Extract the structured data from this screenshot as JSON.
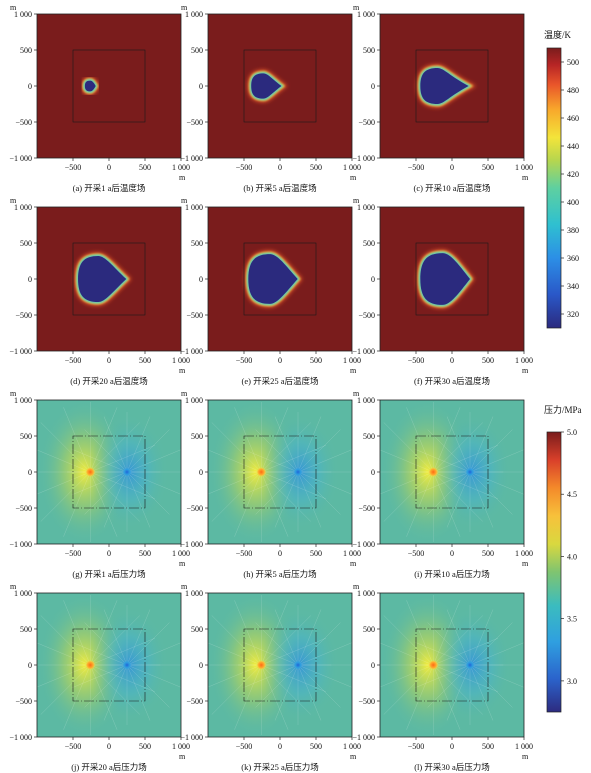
{
  "chart_data": {
    "type": "heatmap",
    "axis_unit_label": "m",
    "x_ticks": [
      -500,
      0,
      500,
      1000
    ],
    "y_ticks": [
      1000,
      500,
      0,
      -500,
      -1000
    ],
    "xlim": [
      -1000,
      1000
    ],
    "ylim": [
      -1000,
      1000
    ],
    "tick_text": {
      "x": [
        "−500",
        "0",
        "500",
        "1 000"
      ],
      "y": [
        "1 000",
        "500",
        "0",
        "−500",
        "−1 000"
      ]
    },
    "reservoir_box": {
      "x": [
        -500,
        500
      ],
      "y": [
        -500,
        500
      ]
    },
    "injection_well": {
      "x": -260,
      "y": 0
    },
    "production_well": {
      "x": 250,
      "y": 0
    },
    "temperature_colorbar": {
      "title": "温度/K",
      "range": [
        310,
        510
      ],
      "tick_labels": [
        "500",
        "480",
        "460",
        "440",
        "420",
        "400",
        "380",
        "360",
        "340",
        "320"
      ],
      "tick_values": [
        500,
        480,
        460,
        440,
        420,
        400,
        380,
        360,
        340,
        320
      ]
    },
    "pressure_colorbar": {
      "title": "压力/MPa",
      "range": [
        2.75,
        5.0
      ],
      "tick_labels": [
        "5.0",
        "4.5",
        "4.0",
        "3.5",
        "3.0"
      ],
      "tick_values": [
        5.0,
        4.5,
        4.0,
        3.5,
        3.0
      ]
    },
    "temperature_panels": [
      {
        "caption": "(a) 开采1 a后温度场",
        "cold_front": {
          "cx": -260,
          "cy": 0,
          "rx": 75,
          "ry": 75,
          "tip_x": -185
        }
      },
      {
        "caption": "(b) 开采5 a后温度场",
        "cold_front": {
          "cx": -230,
          "cy": 0,
          "rx": 170,
          "ry": 175,
          "tip_x": 20
        }
      },
      {
        "caption": "(c) 开采10 a后温度场",
        "cold_front": {
          "cx": -200,
          "cy": 0,
          "rx": 240,
          "ry": 250,
          "tip_x": 230
        }
      },
      {
        "caption": "(d) 开采20 a后温度场",
        "cold_front": {
          "cx": -150,
          "cy": 0,
          "rx": 280,
          "ry": 320,
          "tip_x": 240
        }
      },
      {
        "caption": "(e) 开采25 a后温度场",
        "cold_front": {
          "cx": -140,
          "cy": 0,
          "rx": 300,
          "ry": 345,
          "tip_x": 245
        }
      },
      {
        "caption": "(f) 开采30 a后温度场",
        "cold_front": {
          "cx": -130,
          "cy": 0,
          "rx": 310,
          "ry": 360,
          "tip_x": 250
        }
      }
    ],
    "pressure_panels": [
      {
        "caption": "(g) 开采1 a后压力场"
      },
      {
        "caption": "(h) 开采5 a后压力场"
      },
      {
        "caption": "(i) 开采10 a后压力场"
      },
      {
        "caption": "(j) 开采20 a后压力场"
      },
      {
        "caption": "(k) 开采25 a后压力场"
      },
      {
        "caption": "(l) 开采30 a后压力场"
      }
    ],
    "colors": {
      "hot": "#7a1c1c",
      "cold": "#2b2a7e",
      "pressure_background": "#5cb9a3",
      "pressure_high": "#f2ea3c",
      "pressure_injection": "#ff9a1f",
      "pressure_low": "#2f9fe0"
    }
  }
}
